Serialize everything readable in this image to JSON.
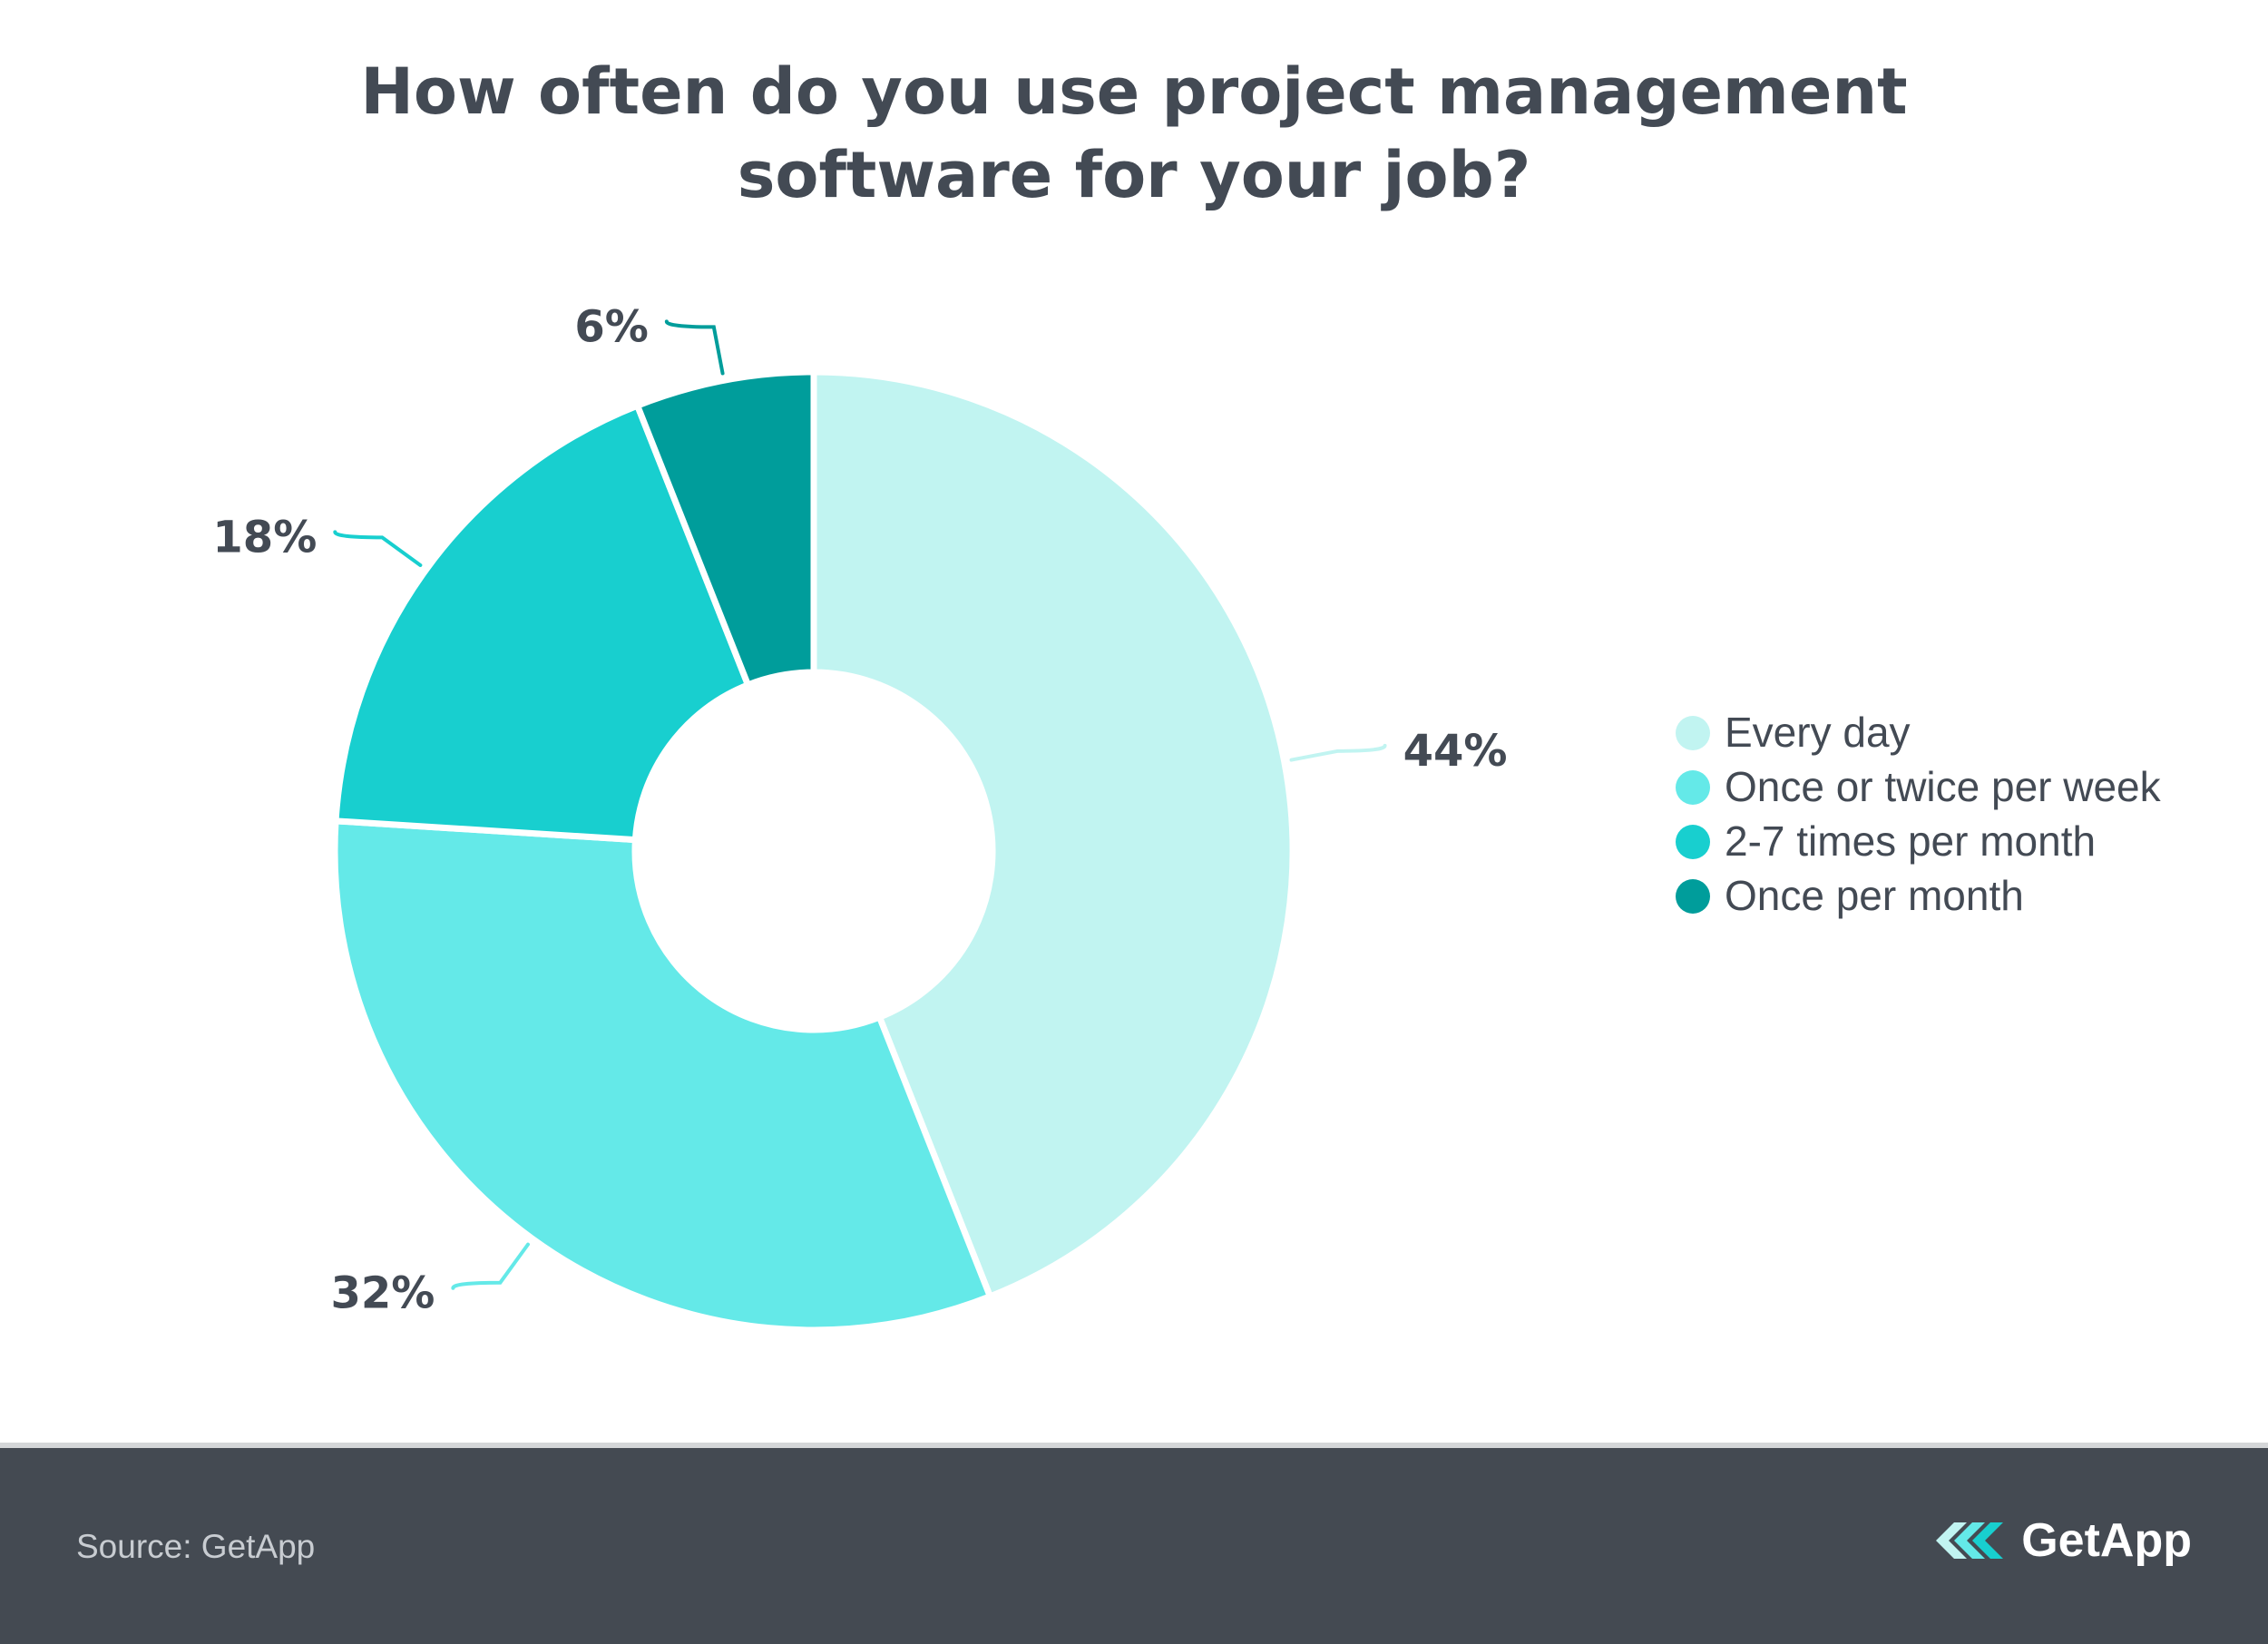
{
  "chart_data": {
    "type": "pie",
    "title_lines": [
      "How often do you use project management",
      "software for your job?"
    ],
    "categories": [
      "Every day",
      "Once or twice per week",
      "2-7 times per month",
      "Once per month"
    ],
    "values": [
      44,
      32,
      18,
      6
    ],
    "data_labels": [
      "44%",
      "32%",
      "18%",
      "6%"
    ],
    "colors": [
      "#c1f4f1",
      "#64e9e8",
      "#18cfcf",
      "#009d9b"
    ],
    "legend_position": "right",
    "donut": true
  },
  "footer": {
    "source": "Source: GetApp",
    "brand": "GetApp"
  }
}
